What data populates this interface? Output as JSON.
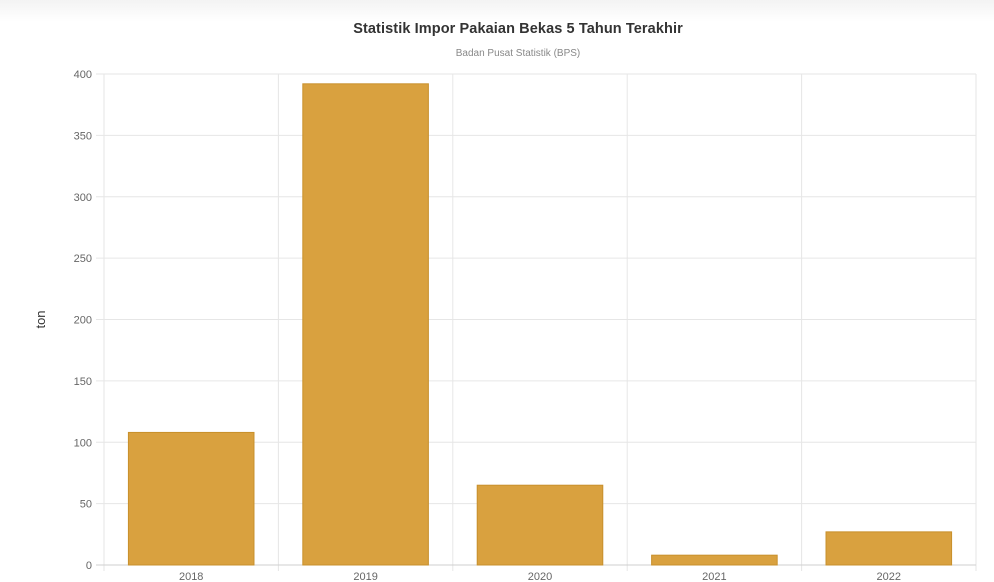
{
  "chart_data": {
    "type": "bar",
    "title": "Statistik Impor Pakaian Bekas 5 Tahun Terakhir",
    "subtitle": "Badan Pusat Statistik (BPS)",
    "xlabel": "",
    "ylabel": "ton",
    "categories": [
      "2018",
      "2019",
      "2020",
      "2021",
      "2022"
    ],
    "values": [
      108,
      392,
      65,
      8,
      27
    ],
    "ylim": [
      0,
      400
    ],
    "yticks": [
      0,
      50,
      100,
      150,
      200,
      250,
      300,
      350,
      400
    ],
    "grid": true,
    "legend": "none"
  },
  "colors": {
    "bar_fill": "#d9a13f",
    "bar_stroke": "#c8902c",
    "grid": "#e6e6e6",
    "axis": "#cfcfcf"
  }
}
